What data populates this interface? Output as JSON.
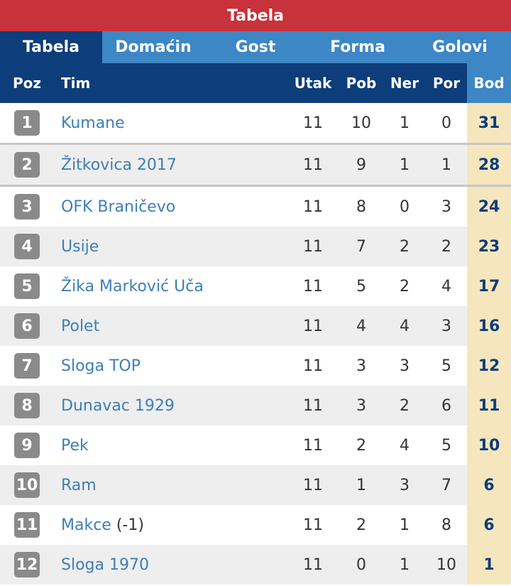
{
  "header": {
    "title": "Tabela"
  },
  "tabs": [
    {
      "label": "Tabela",
      "active": true
    },
    {
      "label": "Domaćin",
      "active": false
    },
    {
      "label": "Gost",
      "active": false
    },
    {
      "label": "Forma",
      "active": false
    },
    {
      "label": "Golovi",
      "active": false
    }
  ],
  "columns": {
    "poz": "Poz",
    "tim": "Tim",
    "utak": "Utak",
    "pob": "Pob",
    "ner": "Ner",
    "por": "Por",
    "bod": "Bod"
  },
  "rows": [
    {
      "poz": "1",
      "team": "Kumane",
      "note": "",
      "utak": "11",
      "pob": "10",
      "ner": "1",
      "por": "0",
      "bod": "31"
    },
    {
      "poz": "2",
      "team": "Žitkovica 2017",
      "note": "",
      "utak": "11",
      "pob": "9",
      "ner": "1",
      "por": "1",
      "bod": "28"
    },
    {
      "poz": "3",
      "team": "OFK Braničevo",
      "note": "",
      "utak": "11",
      "pob": "8",
      "ner": "0",
      "por": "3",
      "bod": "24"
    },
    {
      "poz": "4",
      "team": "Usije",
      "note": "",
      "utak": "11",
      "pob": "7",
      "ner": "2",
      "por": "2",
      "bod": "23"
    },
    {
      "poz": "5",
      "team": "Žika Marković Uča",
      "note": "",
      "utak": "11",
      "pob": "5",
      "ner": "2",
      "por": "4",
      "bod": "17"
    },
    {
      "poz": "6",
      "team": "Polet",
      "note": "",
      "utak": "11",
      "pob": "4",
      "ner": "4",
      "por": "3",
      "bod": "16"
    },
    {
      "poz": "7",
      "team": "Sloga TOP",
      "note": "",
      "utak": "11",
      "pob": "3",
      "ner": "3",
      "por": "5",
      "bod": "12"
    },
    {
      "poz": "8",
      "team": "Dunavac 1929",
      "note": "",
      "utak": "11",
      "pob": "3",
      "ner": "2",
      "por": "6",
      "bod": "11"
    },
    {
      "poz": "9",
      "team": "Pek",
      "note": "",
      "utak": "11",
      "pob": "2",
      "ner": "4",
      "por": "5",
      "bod": "10"
    },
    {
      "poz": "10",
      "team": "Ram",
      "note": "",
      "utak": "11",
      "pob": "1",
      "ner": "3",
      "por": "7",
      "bod": "6"
    },
    {
      "poz": "11",
      "team": "Makce",
      "note": "(-1)",
      "utak": "11",
      "pob": "2",
      "ner": "1",
      "por": "8",
      "bod": "6"
    },
    {
      "poz": "12",
      "team": "Sloga 1970",
      "note": "",
      "utak": "11",
      "pob": "0",
      "ner": "1",
      "por": "10",
      "bod": "1"
    }
  ]
}
